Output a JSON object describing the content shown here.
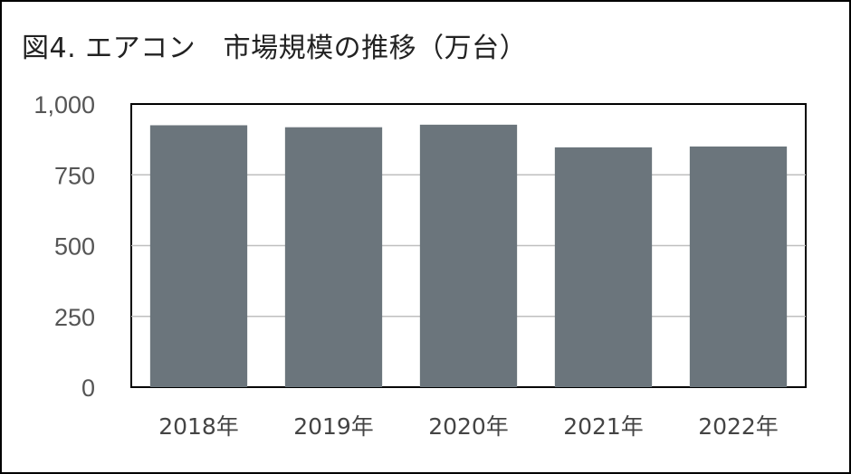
{
  "title": "図4. エアコン　市場規模の推移（万台）",
  "chart_data": {
    "type": "bar",
    "categories": [
      "2018年",
      "2019年",
      "2020年",
      "2021年",
      "2022年"
    ],
    "values": [
      925,
      918,
      927,
      847,
      850
    ],
    "ylim": [
      0,
      1000
    ],
    "yticks": [
      0,
      250,
      500,
      750,
      1000
    ],
    "ytick_labels": [
      "0",
      "250",
      "500",
      "750",
      "1,000"
    ],
    "grid": true,
    "bar_color": "#6b757c",
    "grid_color": "#bfbfbf",
    "legend": "none"
  }
}
